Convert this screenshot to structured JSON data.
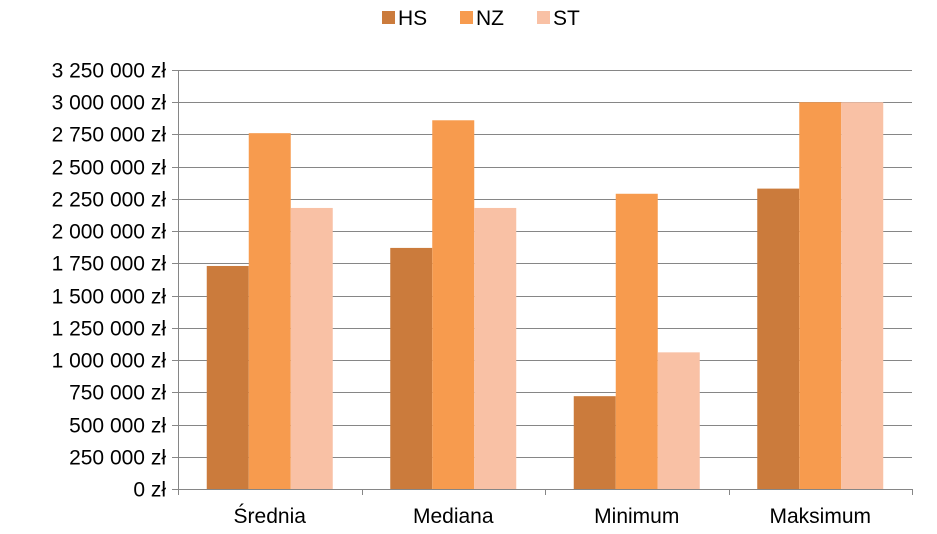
{
  "chart_data": {
    "type": "bar",
    "categories": [
      "Średnia",
      "Mediana",
      "Minimum",
      "Maksimum"
    ],
    "series": [
      {
        "name": "HS",
        "color": "#CB7B3C",
        "values": [
          1730000,
          1870000,
          720000,
          2330000
        ]
      },
      {
        "name": "NZ",
        "color": "#F79B4E",
        "values": [
          2760000,
          2860000,
          2290000,
          3000000
        ]
      },
      {
        "name": "ST",
        "color": "#F9C1A5",
        "values": [
          2180000,
          2180000,
          1060000,
          3000000
        ]
      }
    ],
    "ylim": [
      0,
      3250000
    ],
    "y_ticks": [
      0,
      250000,
      500000,
      750000,
      1000000,
      1250000,
      1500000,
      1750000,
      2000000,
      2250000,
      2500000,
      2750000,
      3000000,
      3250000
    ],
    "y_tick_labels": [
      "0 zł",
      "250 000 zł",
      "500 000 zł",
      "750 000 zł",
      "1 000 000 zł",
      "1 250 000 zł",
      "1 500 000 zł",
      "1 750 000 zł",
      "2 000 000 zł",
      "2 250 000 zł",
      "2 500 000 zł",
      "2 750 000 zł",
      "3 000 000 zł",
      "3 250 000 zł"
    ],
    "grid": true,
    "legend_position": "top-center",
    "title": "",
    "xlabel": "",
    "ylabel": ""
  }
}
